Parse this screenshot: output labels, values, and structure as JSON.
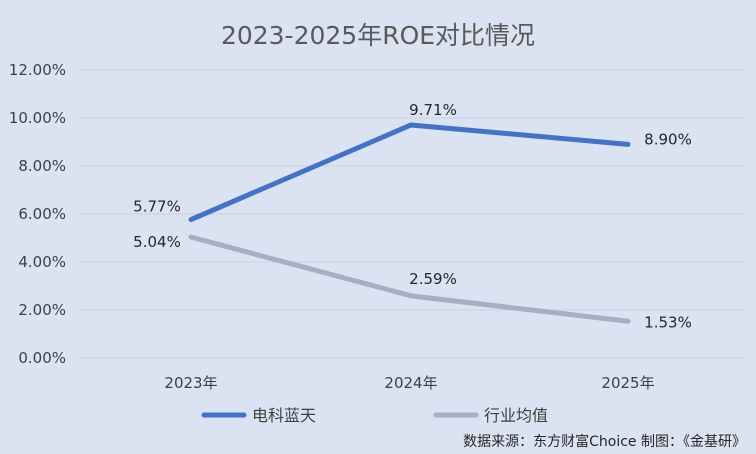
{
  "chart_data": {
    "type": "line",
    "title": "2023-2025年ROE对比情况",
    "categories": [
      "2023年",
      "2024年",
      "2025年"
    ],
    "series": [
      {
        "name": "电科蓝天",
        "values": [
          5.77,
          9.71,
          8.9
        ],
        "labels": [
          "5.77%",
          "9.71%",
          "8.90%"
        ],
        "color": "#4472c4"
      },
      {
        "name": "行业均值",
        "values": [
          5.04,
          2.59,
          1.53
        ],
        "labels": [
          "5.04%",
          "2.59%",
          "1.53%"
        ],
        "color": "#a5afc4"
      }
    ],
    "ylim": [
      0,
      12
    ],
    "yticks": [
      "0.00%",
      "2.00%",
      "4.00%",
      "6.00%",
      "8.00%",
      "10.00%",
      "12.00%"
    ],
    "grid": true,
    "legend": "bottom"
  },
  "footer": {
    "source": "数据来源：东方财富Choice   制图：《金基研》"
  }
}
